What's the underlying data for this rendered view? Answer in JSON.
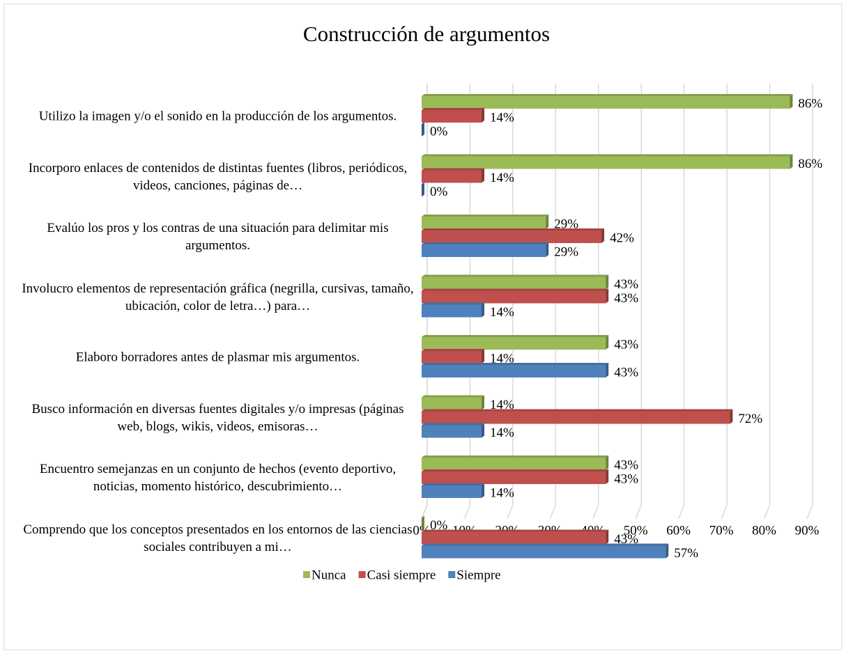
{
  "chart_data": {
    "type": "bar",
    "orientation": "horizontal",
    "title": "Construcción de argumentos",
    "categories": [
      "Utilizo la imagen y/o el sonido en la producción de los argumentos.",
      "Incorporo enlaces de contenidos de distintas fuentes (libros, periódicos, videos, canciones, páginas de…",
      "Evalúo los pros y los contras de una situación para delimitar mis argumentos.",
      "Involucro elementos de representación gráfica (negrilla, cursivas, tamaño, ubicación, color de letra…) para…",
      "Elaboro borradores antes de plasmar mis argumentos.",
      "Busco información en diversas fuentes digitales y/o impresas (páginas web, blogs, wikis, videos, emisoras…",
      "Encuentro semejanzas en un conjunto de hechos (evento deportivo, noticias, momento histórico, descubrimiento…",
      "Comprendo que los conceptos presentados en los entornos de las ciencias sociales contribuyen a mi…"
    ],
    "series": [
      {
        "name": "Nunca",
        "color": "#9bbb59",
        "values": [
          86,
          86,
          29,
          43,
          43,
          14,
          43,
          0
        ],
        "value_labels": [
          "86%",
          "86%",
          "29%",
          "43%",
          "43%",
          "14%",
          "43%",
          "0%"
        ]
      },
      {
        "name": "Casi siempre",
        "color": "#c0504d",
        "values": [
          14,
          14,
          42,
          43,
          14,
          72,
          43,
          43
        ],
        "value_labels": [
          "14%",
          "14%",
          "42%",
          "43%",
          "14%",
          "72%",
          "43%",
          "43%"
        ]
      },
      {
        "name": "Siempre",
        "color": "#4f81bd",
        "values": [
          0,
          0,
          29,
          14,
          43,
          14,
          14,
          57
        ],
        "value_labels": [
          "0%",
          "0%",
          "29%",
          "14%",
          "43%",
          "14%",
          "14%",
          "57%"
        ]
      }
    ],
    "xlim": [
      0,
      90
    ],
    "xticks": [
      {
        "value": 0,
        "label": "0%"
      },
      {
        "value": 10,
        "label": "10%"
      },
      {
        "value": 20,
        "label": "20%"
      },
      {
        "value": 30,
        "label": "30%"
      },
      {
        "value": 40,
        "label": "40%"
      },
      {
        "value": 50,
        "label": "50%"
      },
      {
        "value": 60,
        "label": "60%"
      },
      {
        "value": 70,
        "label": "70%"
      },
      {
        "value": 80,
        "label": "80%"
      },
      {
        "value": 90,
        "label": "90%"
      }
    ],
    "grid": true,
    "legend": "bottom"
  }
}
